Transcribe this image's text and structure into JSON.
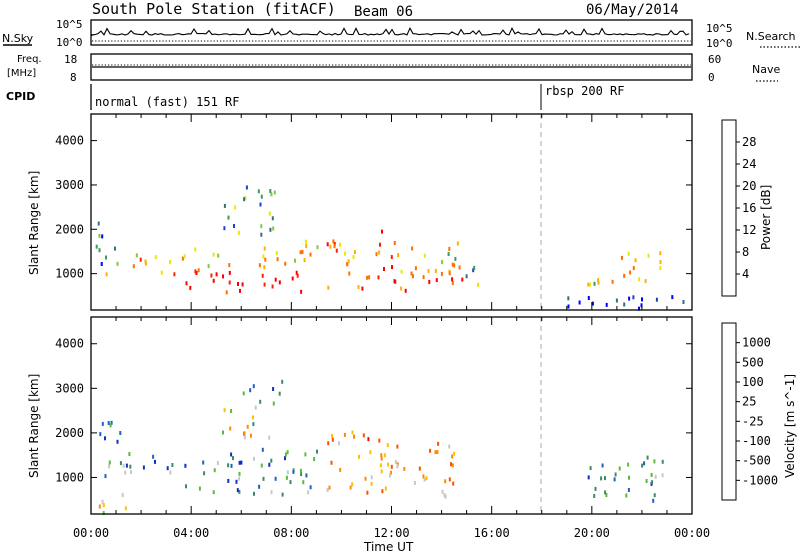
{
  "header": {
    "title": "South Pole Station (fitACF)",
    "beam": "Beam 06",
    "date": "06/May/2014"
  },
  "status_panels": {
    "nsky_label": "N.Sky",
    "nsearch_label": "N.Search",
    "freq_label": "Freq.",
    "freq_unit": "[MHz]",
    "nave_label": "Nave",
    "cpid_label": "CPID",
    "nsky_ticks": [
      "10^5",
      "10^0"
    ],
    "nsearch_ticks": [
      "10^5",
      "10^0"
    ],
    "freq_ticks": [
      "18",
      "8"
    ],
    "nave_ticks": [
      "60",
      "0"
    ]
  },
  "cpid": [
    {
      "label": "normal (fast) 151 RF",
      "start_hour": 0,
      "end_hour": 18
    },
    {
      "label": "rbsp 200 RF",
      "start_hour": 18,
      "end_hour": 24
    }
  ],
  "chart_data": [
    {
      "type": "heatmap",
      "name": "power",
      "ylabel": "Slant Range [km]",
      "xlabel": "Time UT",
      "x_ticks": [
        "00:00",
        "04:00",
        "08:00",
        "12:00",
        "16:00",
        "20:00",
        "00:00"
      ],
      "x_hours": [
        0,
        4,
        8,
        12,
        16,
        20,
        24
      ],
      "y_ticks": [
        1000,
        2000,
        3000,
        4000
      ],
      "ylim": [
        180,
        4600
      ],
      "xlim": [
        0,
        24
      ],
      "colorbar": {
        "label": "Power [dB]",
        "ticks": [
          "28",
          "24",
          "20",
          "16",
          "12",
          "8",
          "4"
        ],
        "colors": [
          "#0000ff",
          "#1f3fcc",
          "#2f6f7f",
          "#3a9a5a",
          "#80c840",
          "#e8e800",
          "#ffb000",
          "#ff7000",
          "#ff2000",
          "#ff0000"
        ]
      },
      "segments": [
        {
          "t0": 0.5,
          "t1": 1.3,
          "r0": 950,
          "r1": 1300,
          "level": 0.5
        },
        {
          "t0": 1.3,
          "t1": 3.2,
          "r0": 1050,
          "r1": 1550,
          "level": 0.65
        },
        {
          "t0": 3.2,
          "t1": 5.8,
          "r0": 600,
          "r1": 1200,
          "level": 0.95
        },
        {
          "t0": 3.5,
          "t1": 5.5,
          "r0": 1200,
          "r1": 1600,
          "level": 0.6
        },
        {
          "t0": 5.8,
          "t1": 8.4,
          "r0": 600,
          "r1": 1150,
          "level": 0.95
        },
        {
          "t0": 6.5,
          "t1": 8.8,
          "r0": 1150,
          "r1": 1700,
          "level": 0.6
        },
        {
          "t0": 8.4,
          "t1": 9.2,
          "r0": 1300,
          "r1": 2000,
          "level": 0.55
        },
        {
          "t0": 5.2,
          "t1": 7.3,
          "r0": 1900,
          "r1": 2600,
          "level": 0.35
        },
        {
          "t0": 6.0,
          "t1": 7.8,
          "r0": 2600,
          "r1": 3200,
          "level": 0.3
        },
        {
          "t0": 9.4,
          "t1": 11.6,
          "r0": 700,
          "r1": 2000,
          "level": 0.75
        },
        {
          "t0": 11.6,
          "t1": 13.0,
          "r0": 650,
          "r1": 1450,
          "level": 0.85
        },
        {
          "t0": 12.0,
          "t1": 14.8,
          "r0": 1000,
          "r1": 1800,
          "level": 0.6
        },
        {
          "t0": 13.2,
          "t1": 14.8,
          "r0": 550,
          "r1": 1000,
          "level": 0.9
        },
        {
          "t0": 14.8,
          "t1": 15.6,
          "r0": 700,
          "r1": 1300,
          "level": 0.35
        },
        {
          "t0": 0.1,
          "t1": 1.0,
          "r0": 1200,
          "r1": 2200,
          "level": 0.2
        },
        {
          "t0": 19.8,
          "t1": 21.0,
          "r0": 500,
          "r1": 1100,
          "level": 0.6
        },
        {
          "t0": 21.0,
          "t1": 22.4,
          "r0": 750,
          "r1": 1500,
          "level": 0.75
        },
        {
          "t0": 22.4,
          "t1": 22.9,
          "r0": 1000,
          "r1": 1600,
          "level": 0.5
        },
        {
          "t0": 18.2,
          "t1": 23.8,
          "r0": 200,
          "r1": 550,
          "level": 0.1
        }
      ]
    },
    {
      "type": "heatmap",
      "name": "velocity",
      "ylabel": "Slant Range [km]",
      "xlabel": "Time UT",
      "x_ticks": [
        "00:00",
        "04:00",
        "08:00",
        "12:00",
        "16:00",
        "20:00",
        "00:00"
      ],
      "x_hours": [
        0,
        4,
        8,
        12,
        16,
        20,
        24
      ],
      "y_ticks": [
        1000,
        2000,
        3000,
        4000
      ],
      "ylim": [
        180,
        4600
      ],
      "xlim": [
        0,
        24
      ],
      "colorbar": {
        "label": "Velocity [m s^-1]",
        "ticks": [
          "1000",
          "500",
          "100",
          "25",
          "-25",
          "-100",
          "-500",
          "-1000"
        ],
        "colors": [
          "#1030c0",
          "#2060c0",
          "#3a8a6a",
          "#5cba3a",
          "#c8c8c8",
          "#ffc000",
          "#ff8a00",
          "#ff5000",
          "#ff0000"
        ]
      },
      "segments": [
        {
          "t0": 0.5,
          "t1": 3.2,
          "r0": 1000,
          "r1": 1600,
          "level": 0.3
        },
        {
          "t0": 3.2,
          "t1": 6.0,
          "r0": 700,
          "r1": 1600,
          "level": 0.25
        },
        {
          "t0": 6.0,
          "t1": 9.0,
          "r0": 600,
          "r1": 1700,
          "level": 0.3
        },
        {
          "t0": 5.2,
          "t1": 7.3,
          "r0": 1900,
          "r1": 2600,
          "level": 0.5
        },
        {
          "t0": 6.0,
          "t1": 7.8,
          "r0": 2600,
          "r1": 3200,
          "level": 0.25
        },
        {
          "t0": 9.3,
          "t1": 11.8,
          "r0": 700,
          "r1": 2100,
          "level": 0.7
        },
        {
          "t0": 11.8,
          "t1": 14.8,
          "r0": 600,
          "r1": 1800,
          "level": 0.65
        },
        {
          "t0": 0.1,
          "t1": 1.2,
          "r0": 1300,
          "r1": 2300,
          "level": 0.3
        },
        {
          "t0": 0.0,
          "t1": 1.5,
          "r0": 200,
          "r1": 700,
          "level": 0.55
        },
        {
          "t0": 19.8,
          "t1": 22.9,
          "r0": 500,
          "r1": 1500,
          "level": 0.25
        },
        {
          "t0": 22.3,
          "t1": 22.9,
          "r0": 900,
          "r1": 1500,
          "level": 0.6
        }
      ]
    }
  ]
}
